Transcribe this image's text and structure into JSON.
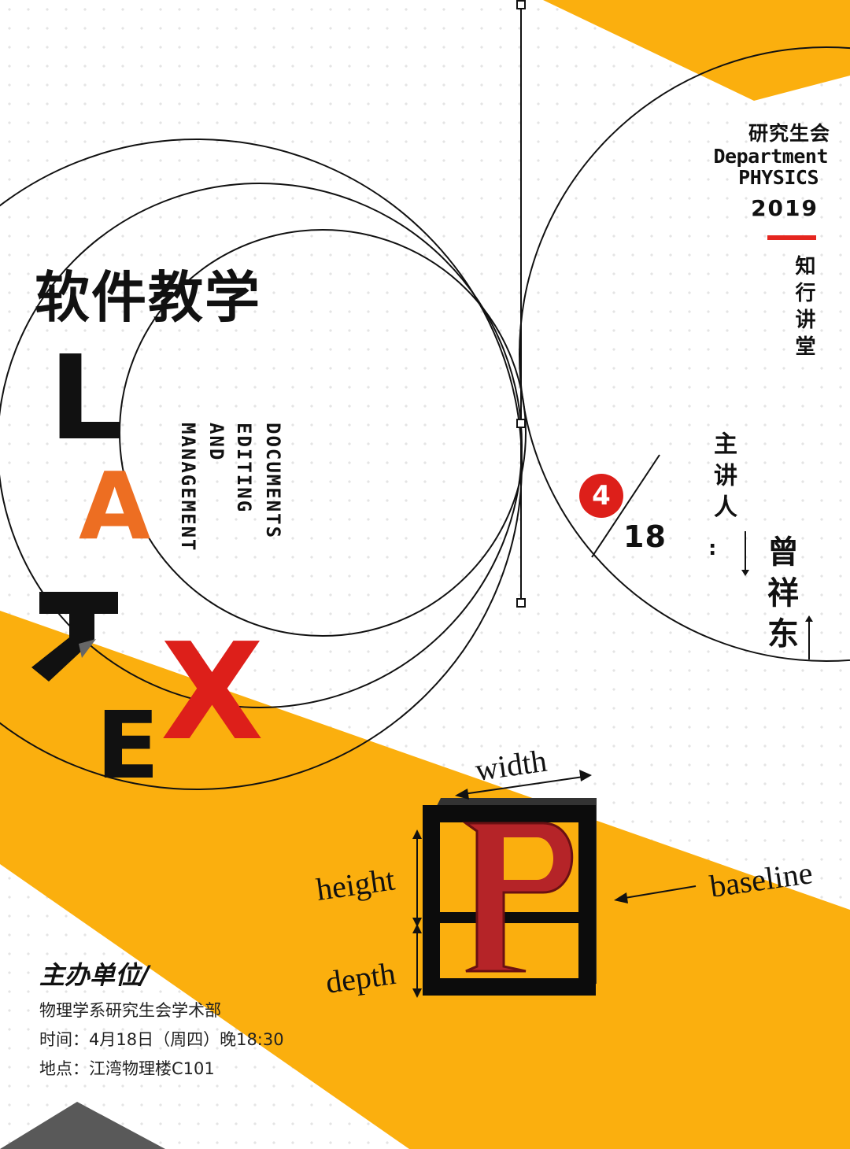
{
  "header": {
    "org_cn": "研究生会",
    "dept_en": "Department",
    "physics_en": "PHYSICS",
    "year": "2019",
    "forum": "知行讲堂"
  },
  "headline": "软件教学",
  "title_letters": {
    "L": "L",
    "A": "A",
    "T": "T",
    "E": "E",
    "X": "X"
  },
  "subtitle_vertical": [
    "DOCUMENTS",
    "EDITING",
    "AND",
    "MANAGEMENT"
  ],
  "date": {
    "month": "4",
    "day": "18"
  },
  "speaker": {
    "label": "主讲人",
    "colon": ":",
    "name": "曾祥东"
  },
  "diagram": {
    "glyph": "P",
    "labels": {
      "width": "width",
      "height": "height",
      "depth": "depth",
      "baseline": "baseline"
    }
  },
  "footer": {
    "organizer_title": "主办单位/",
    "organizer": "物理学系研究生会学术部",
    "time": "时间：4月18日（周四）晚18:30",
    "place": "地点：江湾物理楼C101"
  },
  "colors": {
    "yellow": "#fbaf0e",
    "red": "#dd1f1a",
    "orange": "#ed6e22",
    "black": "#111111",
    "gray": "#595959"
  }
}
